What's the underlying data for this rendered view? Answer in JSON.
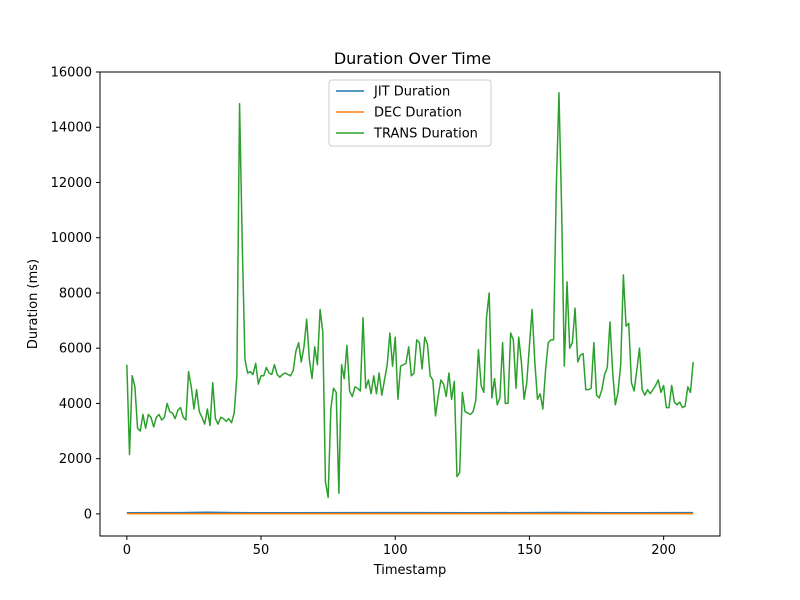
{
  "chart_data": {
    "type": "line",
    "title": "Duration Over Time",
    "xlabel": "Timestamp",
    "ylabel": "Duration (ms)",
    "xlim": [
      -10,
      221
    ],
    "ylim": [
      -800,
      16000
    ],
    "xticks": [
      0,
      50,
      100,
      150,
      200
    ],
    "yticks": [
      0,
      2000,
      4000,
      6000,
      8000,
      10000,
      12000,
      14000,
      16000
    ],
    "grid": false,
    "legend_position": "upper center",
    "series": [
      {
        "name": "JIT Duration",
        "color": "#1f77b4",
        "points": [
          [
            0,
            40
          ],
          [
            20,
            45
          ],
          [
            30,
            60
          ],
          [
            40,
            45
          ],
          [
            60,
            40
          ],
          [
            100,
            45
          ],
          [
            130,
            40
          ],
          [
            160,
            50
          ],
          [
            180,
            40
          ],
          [
            211,
            45
          ]
        ]
      },
      {
        "name": "DEC Duration",
        "color": "#ff7f0e",
        "points": [
          [
            0,
            10
          ],
          [
            50,
            10
          ],
          [
            100,
            10
          ],
          [
            150,
            10
          ],
          [
            211,
            10
          ]
        ]
      },
      {
        "name": "TRANS Duration",
        "color": "#2ca02c",
        "points": [
          [
            0,
            5400
          ],
          [
            1,
            2150
          ],
          [
            2,
            5000
          ],
          [
            3,
            4600
          ],
          [
            4,
            3100
          ],
          [
            5,
            3000
          ],
          [
            6,
            3600
          ],
          [
            7,
            3100
          ],
          [
            8,
            3600
          ],
          [
            9,
            3500
          ],
          [
            10,
            3150
          ],
          [
            11,
            3500
          ],
          [
            12,
            3600
          ],
          [
            13,
            3400
          ],
          [
            14,
            3500
          ],
          [
            15,
            4000
          ],
          [
            16,
            3700
          ],
          [
            17,
            3650
          ],
          [
            18,
            3450
          ],
          [
            19,
            3750
          ],
          [
            20,
            3850
          ],
          [
            21,
            3500
          ],
          [
            22,
            3400
          ],
          [
            23,
            5150
          ],
          [
            24,
            4600
          ],
          [
            25,
            3800
          ],
          [
            26,
            4500
          ],
          [
            27,
            3700
          ],
          [
            28,
            3500
          ],
          [
            29,
            3250
          ],
          [
            30,
            3800
          ],
          [
            31,
            3200
          ],
          [
            32,
            4750
          ],
          [
            33,
            3450
          ],
          [
            34,
            3250
          ],
          [
            35,
            3500
          ],
          [
            36,
            3450
          ],
          [
            37,
            3350
          ],
          [
            38,
            3450
          ],
          [
            39,
            3300
          ],
          [
            40,
            3650
          ],
          [
            41,
            5000
          ],
          [
            42,
            14850
          ],
          [
            43,
            9800
          ],
          [
            44,
            5600
          ],
          [
            45,
            5100
          ],
          [
            46,
            5150
          ],
          [
            47,
            5050
          ],
          [
            48,
            5450
          ],
          [
            49,
            4700
          ],
          [
            50,
            5000
          ],
          [
            51,
            5000
          ],
          [
            52,
            5300
          ],
          [
            53,
            5100
          ],
          [
            54,
            5050
          ],
          [
            55,
            5400
          ],
          [
            56,
            5050
          ],
          [
            57,
            4950
          ],
          [
            58,
            5050
          ],
          [
            59,
            5100
          ],
          [
            60,
            5050
          ],
          [
            61,
            5000
          ],
          [
            62,
            5200
          ],
          [
            63,
            5900
          ],
          [
            64,
            6200
          ],
          [
            65,
            5500
          ],
          [
            66,
            6050
          ],
          [
            67,
            7050
          ],
          [
            68,
            5600
          ],
          [
            69,
            4900
          ],
          [
            70,
            6050
          ],
          [
            71,
            5400
          ],
          [
            72,
            7400
          ],
          [
            73,
            6600
          ],
          [
            74,
            1150
          ],
          [
            75,
            600
          ],
          [
            76,
            3800
          ],
          [
            77,
            4550
          ],
          [
            78,
            4400
          ],
          [
            79,
            750
          ],
          [
            80,
            5400
          ],
          [
            81,
            4900
          ],
          [
            82,
            6100
          ],
          [
            83,
            4450
          ],
          [
            84,
            4250
          ],
          [
            85,
            4600
          ],
          [
            86,
            4550
          ],
          [
            87,
            4450
          ],
          [
            88,
            7100
          ],
          [
            89,
            4550
          ],
          [
            90,
            4850
          ],
          [
            91,
            4350
          ],
          [
            92,
            5000
          ],
          [
            93,
            4350
          ],
          [
            94,
            5100
          ],
          [
            95,
            4300
          ],
          [
            96,
            4850
          ],
          [
            97,
            5400
          ],
          [
            98,
            6550
          ],
          [
            99,
            5350
          ],
          [
            100,
            6400
          ],
          [
            101,
            4150
          ],
          [
            102,
            5350
          ],
          [
            103,
            5400
          ],
          [
            104,
            5450
          ],
          [
            105,
            6050
          ],
          [
            106,
            5000
          ],
          [
            107,
            5100
          ],
          [
            108,
            6300
          ],
          [
            109,
            6200
          ],
          [
            110,
            5250
          ],
          [
            111,
            6400
          ],
          [
            112,
            6150
          ],
          [
            113,
            5000
          ],
          [
            114,
            4850
          ],
          [
            115,
            3550
          ],
          [
            116,
            4250
          ],
          [
            117,
            4850
          ],
          [
            118,
            4700
          ],
          [
            119,
            4250
          ],
          [
            120,
            5100
          ],
          [
            121,
            4150
          ],
          [
            122,
            4800
          ],
          [
            123,
            1350
          ],
          [
            124,
            1500
          ],
          [
            125,
            4400
          ],
          [
            126,
            3700
          ],
          [
            127,
            3650
          ],
          [
            128,
            3600
          ],
          [
            129,
            3700
          ],
          [
            130,
            4100
          ],
          [
            131,
            5950
          ],
          [
            132,
            4650
          ],
          [
            133,
            4400
          ],
          [
            134,
            7100
          ],
          [
            135,
            8000
          ],
          [
            136,
            4200
          ],
          [
            137,
            4900
          ],
          [
            138,
            3950
          ],
          [
            139,
            4200
          ],
          [
            140,
            6200
          ],
          [
            141,
            4000
          ],
          [
            142,
            4000
          ],
          [
            143,
            6550
          ],
          [
            144,
            6300
          ],
          [
            145,
            4550
          ],
          [
            146,
            6400
          ],
          [
            147,
            5500
          ],
          [
            148,
            4150
          ],
          [
            149,
            4750
          ],
          [
            150,
            6100
          ],
          [
            151,
            7400
          ],
          [
            152,
            5500
          ],
          [
            153,
            4150
          ],
          [
            154,
            4350
          ],
          [
            155,
            3800
          ],
          [
            156,
            5200
          ],
          [
            157,
            6200
          ],
          [
            158,
            6300
          ],
          [
            159,
            6300
          ],
          [
            160,
            11800
          ],
          [
            161,
            15250
          ],
          [
            162,
            11000
          ],
          [
            163,
            5350
          ],
          [
            164,
            8400
          ],
          [
            165,
            6000
          ],
          [
            166,
            6200
          ],
          [
            167,
            7450
          ],
          [
            168,
            5500
          ],
          [
            169,
            5750
          ],
          [
            170,
            5800
          ],
          [
            171,
            4500
          ],
          [
            172,
            4500
          ],
          [
            173,
            4550
          ],
          [
            174,
            6200
          ],
          [
            175,
            4300
          ],
          [
            176,
            4200
          ],
          [
            177,
            4500
          ],
          [
            178,
            5050
          ],
          [
            179,
            5300
          ],
          [
            180,
            6950
          ],
          [
            181,
            5150
          ],
          [
            182,
            3950
          ],
          [
            183,
            4400
          ],
          [
            184,
            5400
          ],
          [
            185,
            8650
          ],
          [
            186,
            6800
          ],
          [
            187,
            6900
          ],
          [
            188,
            4750
          ],
          [
            189,
            4450
          ],
          [
            190,
            5200
          ],
          [
            191,
            6000
          ],
          [
            192,
            4500
          ],
          [
            193,
            4300
          ],
          [
            194,
            4500
          ],
          [
            195,
            4350
          ],
          [
            196,
            4500
          ],
          [
            197,
            4650
          ],
          [
            198,
            4850
          ],
          [
            199,
            4400
          ],
          [
            200,
            4650
          ],
          [
            201,
            3850
          ],
          [
            202,
            3850
          ],
          [
            203,
            4650
          ],
          [
            204,
            4050
          ],
          [
            205,
            3950
          ],
          [
            206,
            4050
          ],
          [
            207,
            3850
          ],
          [
            208,
            3900
          ],
          [
            209,
            4600
          ],
          [
            210,
            4400
          ],
          [
            211,
            5500
          ]
        ]
      }
    ]
  }
}
